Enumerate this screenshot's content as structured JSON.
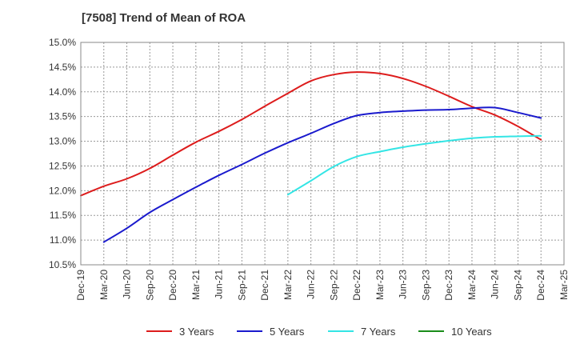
{
  "chart_data": {
    "type": "line",
    "title": "[7508]  Trend of Mean of ROA",
    "ylim": [
      10.5,
      15.0
    ],
    "y_ticks": [
      "10.5%",
      "11.0%",
      "11.5%",
      "12.0%",
      "12.5%",
      "13.0%",
      "13.5%",
      "14.0%",
      "14.5%",
      "15.0%"
    ],
    "y_tick_values": [
      10.5,
      11.0,
      11.5,
      12.0,
      12.5,
      13.0,
      13.5,
      14.0,
      14.5,
      15.0
    ],
    "x_ticks": [
      "Dec-19",
      "Mar-20",
      "Jun-20",
      "Sep-20",
      "Dec-20",
      "Mar-21",
      "Jun-21",
      "Sep-21",
      "Dec-21",
      "Mar-22",
      "Jun-22",
      "Sep-22",
      "Dec-22",
      "Mar-23",
      "Jun-23",
      "Sep-23",
      "Dec-23",
      "Mar-24",
      "Jun-24",
      "Sep-24",
      "Dec-24",
      "Mar-25"
    ],
    "grid": true,
    "legend_position": "bottom",
    "series": [
      {
        "name": "3 Years",
        "color": "#dd1c1c",
        "x": [
          "Dec-19",
          "Mar-20",
          "Jun-20",
          "Sep-20",
          "Dec-20",
          "Mar-21",
          "Jun-21",
          "Sep-21",
          "Dec-21",
          "Mar-22",
          "Jun-22",
          "Sep-22",
          "Dec-22",
          "Mar-23",
          "Jun-23",
          "Sep-23",
          "Dec-23",
          "Mar-24",
          "Jun-24",
          "Sep-24",
          "Dec-24"
        ],
        "values": [
          11.9,
          12.09,
          12.24,
          12.45,
          12.72,
          12.98,
          13.2,
          13.44,
          13.71,
          13.97,
          14.22,
          14.35,
          14.4,
          14.37,
          14.27,
          14.11,
          13.91,
          13.7,
          13.53,
          13.3,
          13.03
        ]
      },
      {
        "name": "5 Years",
        "color": "#1a1acd",
        "x": [
          "Mar-20",
          "Jun-20",
          "Sep-20",
          "Dec-20",
          "Mar-21",
          "Jun-21",
          "Sep-21",
          "Dec-21",
          "Mar-22",
          "Jun-22",
          "Sep-22",
          "Dec-22",
          "Mar-23",
          "Jun-23",
          "Sep-23",
          "Dec-23",
          "Mar-24",
          "Jun-24",
          "Sep-24",
          "Dec-24"
        ],
        "values": [
          10.96,
          11.24,
          11.56,
          11.82,
          12.07,
          12.31,
          12.53,
          12.76,
          12.97,
          13.16,
          13.36,
          13.52,
          13.58,
          13.61,
          13.63,
          13.64,
          13.67,
          13.68,
          13.58,
          13.47
        ]
      },
      {
        "name": "7 Years",
        "color": "#33e5e5",
        "x": [
          "Mar-22",
          "Jun-22",
          "Sep-22",
          "Dec-22",
          "Mar-23",
          "Jun-23",
          "Sep-23",
          "Dec-23",
          "Mar-24",
          "Jun-24",
          "Sep-24",
          "Dec-24"
        ],
        "values": [
          11.92,
          12.2,
          12.49,
          12.69,
          12.79,
          12.88,
          12.95,
          13.01,
          13.06,
          13.09,
          13.1,
          13.11
        ]
      },
      {
        "name": "10 Years",
        "color": "#1a8c1a",
        "x": [],
        "values": []
      }
    ]
  }
}
